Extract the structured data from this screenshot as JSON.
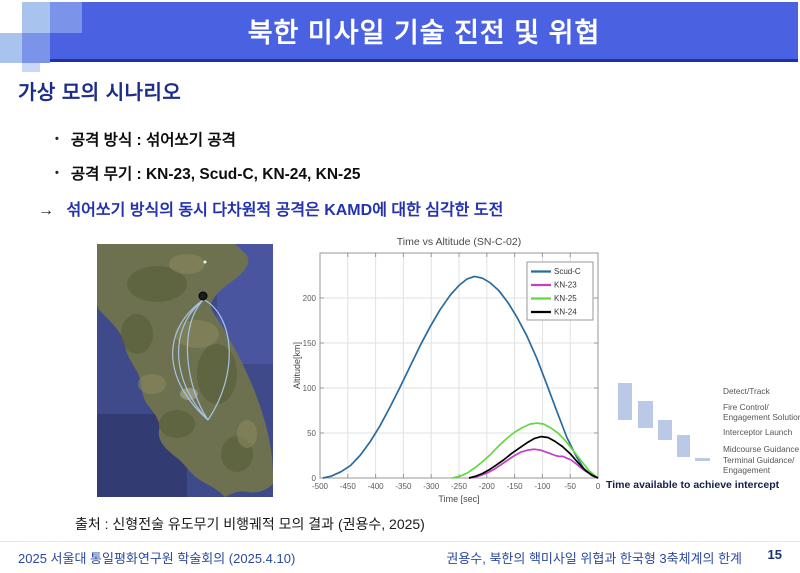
{
  "title_bar": {
    "title": "북한 미사일 기술 진전 및 위협"
  },
  "content": {
    "heading": "가상 모의 시나리오",
    "bullet_char": "•",
    "bullet1": "공격 방식 : 섞어쏘기 공격",
    "bullet2": "공격 무기 : KN-23, Scud-C, KN-24, KN-25",
    "arrow": "→",
    "arrow_text": "섞어쏘기 방식의 동시 다차원적 공격은 KAMD에 대한 심각한 도전",
    "source": "출처 : 신형전술 유도무기 비행궤적 모의 결과 (권용수, 2025)"
  },
  "footer": {
    "left": "2025 서울대 통일평화연구원 학술회의 (2025.4.10)",
    "right": "권용수, 북한의 핵미사일 위협과 한국형 3축체계의 한계",
    "page": "15"
  },
  "chart_data": {
    "type": "line",
    "title": "Time vs Altitude (SN-C-02)",
    "xlabel": "Time [sec]",
    "ylabel": "Altitude[km]",
    "xlim": [
      -500,
      0
    ],
    "ylim": [
      0,
      250
    ],
    "x_ticks": [
      -500,
      -450,
      -400,
      -350,
      -300,
      -250,
      -200,
      -150,
      -100,
      -50,
      0
    ],
    "y_ticks": [
      0,
      50,
      100,
      150,
      200
    ],
    "grid": true,
    "legend_position": "top-right",
    "series": [
      {
        "name": "Scud-C",
        "color": "#2b6a9e",
        "points": [
          [
            -495,
            0
          ],
          [
            -480,
            2
          ],
          [
            -462,
            7
          ],
          [
            -445,
            14
          ],
          [
            -428,
            25
          ],
          [
            -410,
            40
          ],
          [
            -392,
            58
          ],
          [
            -374,
            79
          ],
          [
            -356,
            101
          ],
          [
            -338,
            124
          ],
          [
            -320,
            147
          ],
          [
            -302,
            168
          ],
          [
            -284,
            187
          ],
          [
            -266,
            203
          ],
          [
            -250,
            214
          ],
          [
            -236,
            221
          ],
          [
            -222,
            224
          ],
          [
            -208,
            222
          ],
          [
            -194,
            217
          ],
          [
            -178,
            208
          ],
          [
            -162,
            195
          ],
          [
            -146,
            179
          ],
          [
            -128,
            158
          ],
          [
            -110,
            133
          ],
          [
            -92,
            104
          ],
          [
            -74,
            74
          ],
          [
            -56,
            45
          ],
          [
            -40,
            25
          ],
          [
            -26,
            11
          ],
          [
            -12,
            3
          ],
          [
            0,
            0
          ]
        ]
      },
      {
        "name": "KN-23",
        "color": "#c43fc4",
        "points": [
          [
            -232,
            0
          ],
          [
            -221,
            1
          ],
          [
            -210,
            3
          ],
          [
            -198,
            6
          ],
          [
            -186,
            10
          ],
          [
            -174,
            15
          ],
          [
            -162,
            20
          ],
          [
            -150,
            25
          ],
          [
            -138,
            29
          ],
          [
            -126,
            31
          ],
          [
            -115,
            32
          ],
          [
            -104,
            31
          ],
          [
            -94,
            29
          ],
          [
            -85,
            27
          ],
          [
            -77,
            25
          ],
          [
            -70,
            24
          ],
          [
            -63,
            24
          ],
          [
            -56,
            22
          ],
          [
            -48,
            20
          ],
          [
            -38,
            15
          ],
          [
            -28,
            10
          ],
          [
            -18,
            6
          ],
          [
            -8,
            2
          ],
          [
            0,
            0
          ]
        ]
      },
      {
        "name": "KN-25",
        "color": "#63d83f",
        "points": [
          [
            -262,
            0
          ],
          [
            -248,
            2
          ],
          [
            -234,
            6
          ],
          [
            -220,
            12
          ],
          [
            -206,
            19
          ],
          [
            -192,
            27
          ],
          [
            -178,
            36
          ],
          [
            -164,
            44
          ],
          [
            -150,
            51
          ],
          [
            -136,
            56
          ],
          [
            -122,
            60
          ],
          [
            -110,
            61
          ],
          [
            -98,
            60
          ],
          [
            -86,
            56
          ],
          [
            -72,
            50
          ],
          [
            -58,
            41
          ],
          [
            -44,
            30
          ],
          [
            -30,
            19
          ],
          [
            -16,
            8
          ],
          [
            0,
            0
          ]
        ]
      },
      {
        "name": "KN-24",
        "color": "#000000",
        "points": [
          [
            -232,
            0
          ],
          [
            -220,
            2
          ],
          [
            -208,
            5
          ],
          [
            -196,
            9
          ],
          [
            -184,
            14
          ],
          [
            -170,
            20
          ],
          [
            -156,
            27
          ],
          [
            -142,
            33
          ],
          [
            -128,
            39
          ],
          [
            -114,
            44
          ],
          [
            -102,
            46
          ],
          [
            -90,
            45
          ],
          [
            -78,
            41
          ],
          [
            -64,
            35
          ],
          [
            -50,
            27
          ],
          [
            -36,
            17
          ],
          [
            -22,
            8
          ],
          [
            -10,
            3
          ],
          [
            0,
            0
          ]
        ]
      }
    ],
    "legend_order": [
      "Scud-C",
      "KN-23",
      "KN-25",
      "KN-24"
    ]
  },
  "intercept_panel": {
    "stages": [
      "Detect/Track",
      "Fire Control/\nEngagement Solution",
      "Interceptor Launch",
      "Midcourse Guidance",
      "Terminal Guidance/\nEngagement"
    ],
    "caption": "Time available to achieve intercept",
    "bar_color": "#b9c9e6"
  },
  "colors": {
    "title_bar_blue": "#4a61e2",
    "heading_navy": "#1c2c8a",
    "arrow_text_blue": "#2433ad",
    "footer_blue": "#2b4aa0"
  }
}
